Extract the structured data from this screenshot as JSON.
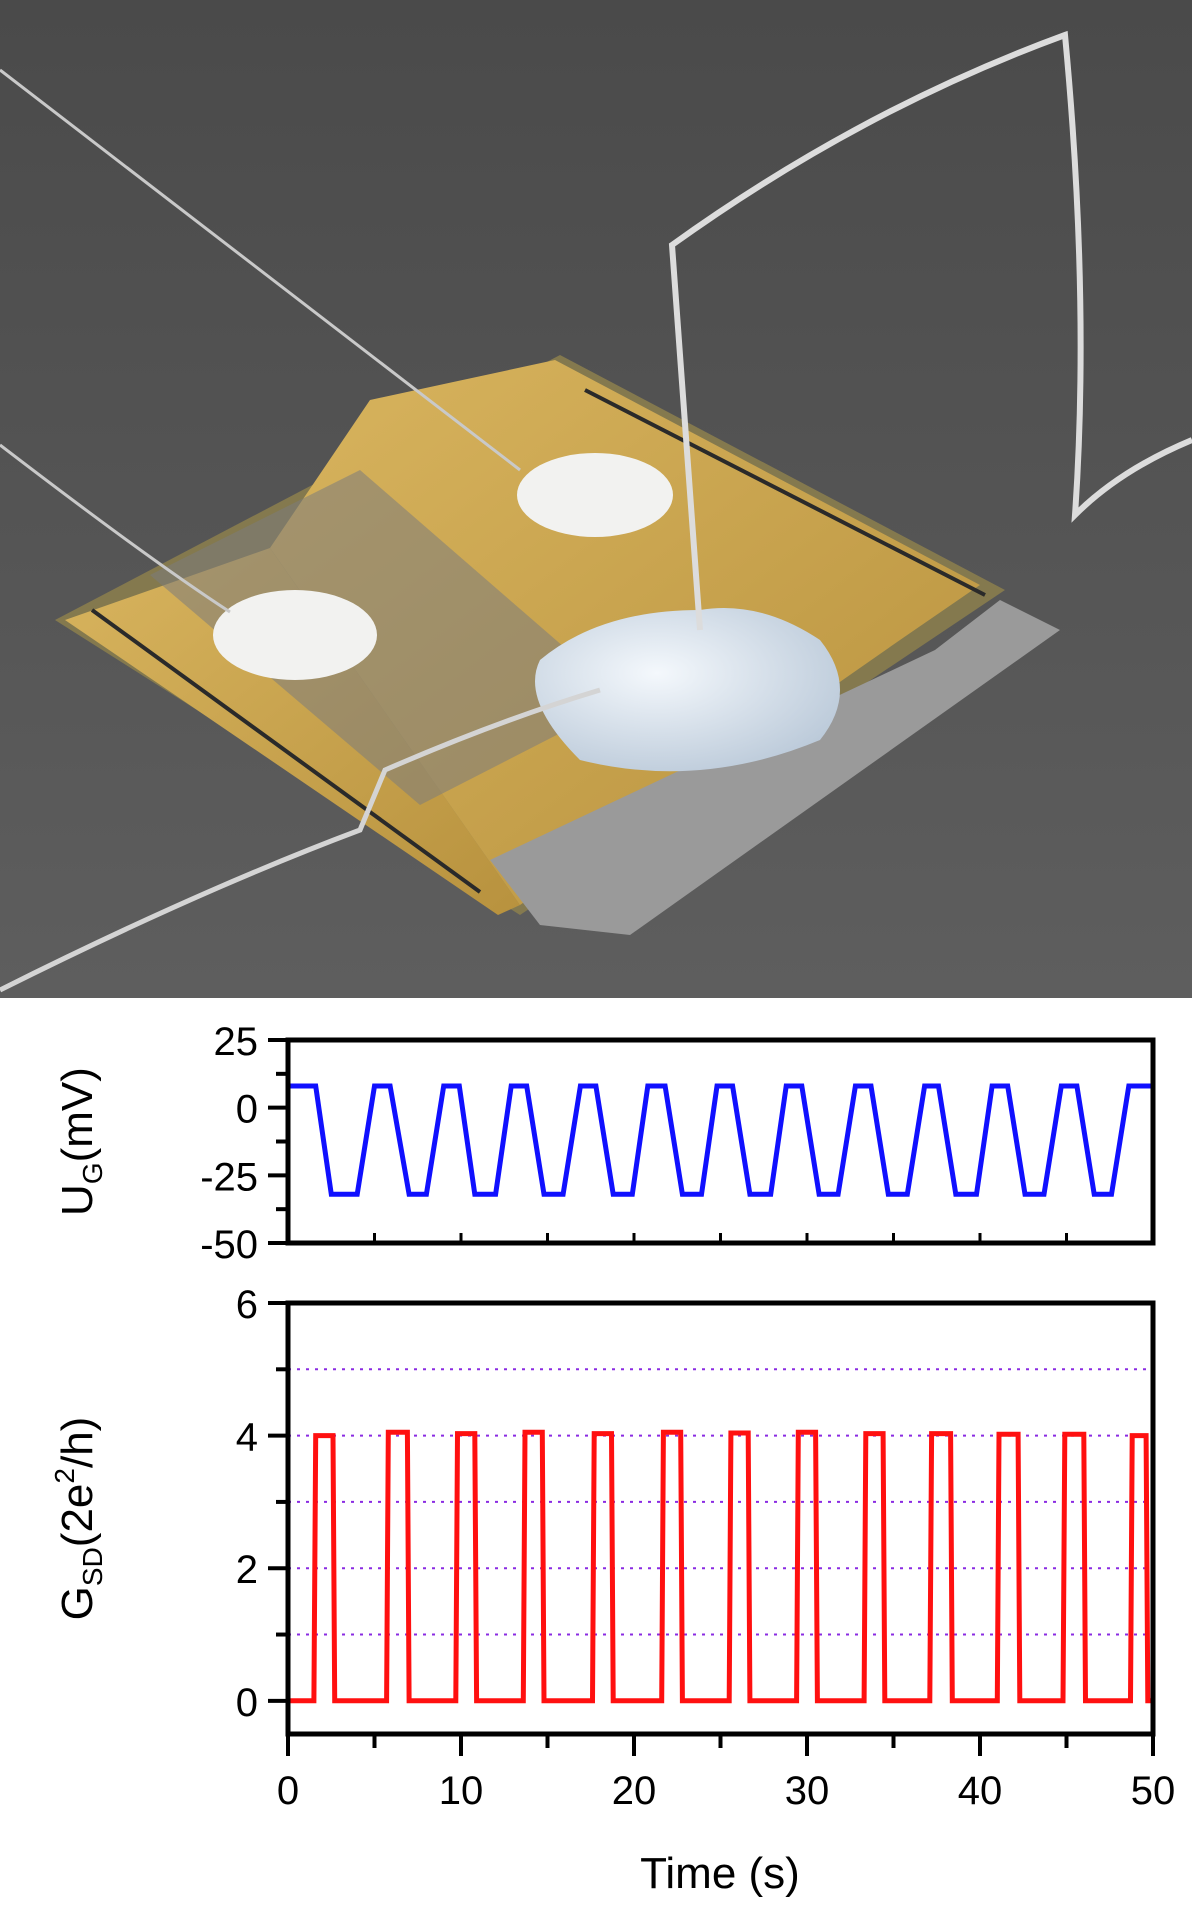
{
  "chart_data": [
    {
      "type": "line",
      "ylabel_main": "U",
      "ylabel_sub": "G",
      "ylabel_unit": "(mV)",
      "ylim": [
        -50,
        25
      ],
      "yticks": [
        25,
        0,
        -25,
        -50
      ],
      "xlim": [
        0,
        50
      ],
      "grid": false,
      "series": [
        {
          "color": "#1010ff",
          "x": [
            0,
            1.6,
            2.5,
            3.6,
            4.0,
            5.0,
            5.9,
            7.0,
            8.0,
            9.0,
            9.9,
            10.8,
            12.0,
            12.9,
            13.8,
            14.8,
            15.9,
            16.9,
            17.8,
            18.8,
            19.9,
            20.8,
            21.8,
            22.8,
            23.9,
            24.8,
            25.7,
            26.7,
            27.9,
            28.8,
            29.7,
            30.7,
            31.8,
            32.8,
            33.7,
            34.7,
            35.8,
            36.8,
            37.6,
            38.6,
            39.8,
            40.7,
            41.6,
            42.6,
            43.7,
            44.7,
            45.6,
            46.6,
            47.6,
            48.6,
            49.5,
            50
          ],
          "y": [
            8,
            8,
            -32,
            -32,
            -32,
            8,
            8,
            -32,
            -32,
            8,
            8,
            -32,
            -32,
            8,
            8,
            -32,
            -32,
            8,
            8,
            -32,
            -32,
            8,
            8,
            -32,
            -32,
            8,
            8,
            -32,
            -32,
            8,
            8,
            -32,
            -32,
            8,
            8,
            -32,
            -32,
            8,
            8,
            -32,
            -32,
            8,
            8,
            -32,
            -32,
            8,
            8,
            -32,
            -32,
            8,
            8,
            8
          ]
        }
      ]
    },
    {
      "type": "line",
      "ylabel_main": "G",
      "ylabel_sub": "SD",
      "ylabel_unit_pre": "(2e",
      "ylabel_sup": "2",
      "ylabel_unit_post": "/h)",
      "ylim": [
        -0.5,
        6
      ],
      "yticks": [
        6,
        4,
        2,
        0
      ],
      "xlim": [
        0,
        50
      ],
      "xticks": [
        0,
        10,
        20,
        30,
        40,
        50
      ],
      "xlabel": "Time (s)",
      "grid_levels": [
        1,
        2,
        3,
        4,
        5
      ],
      "grid_color": "#8a2be2",
      "series": [
        {
          "color": "#ff1010",
          "x": [
            0,
            1.5,
            1.6,
            2.6,
            2.7,
            5.7,
            5.8,
            6.9,
            7.0,
            9.7,
            9.8,
            10.8,
            10.9,
            13.6,
            13.7,
            14.7,
            14.8,
            17.6,
            17.7,
            18.7,
            18.8,
            21.6,
            21.7,
            22.7,
            22.8,
            25.5,
            25.6,
            26.6,
            26.7,
            29.4,
            29.5,
            30.5,
            30.6,
            33.3,
            33.4,
            34.4,
            34.5,
            37.1,
            37.2,
            38.3,
            38.4,
            41.0,
            41.1,
            42.2,
            42.3,
            44.8,
            44.9,
            46.0,
            46.1,
            48.7,
            48.8,
            49.6,
            49.7,
            50
          ],
          "y": [
            0,
            0,
            4.0,
            4.0,
            0,
            0,
            4.05,
            4.05,
            0,
            0,
            4.03,
            4.03,
            0,
            0,
            4.05,
            4.05,
            0,
            0,
            4.03,
            4.03,
            0,
            0,
            4.05,
            4.05,
            0,
            0,
            4.04,
            4.04,
            0,
            0,
            4.05,
            4.05,
            0,
            0,
            4.03,
            4.03,
            0,
            0,
            4.03,
            4.03,
            0,
            0,
            4.02,
            4.02,
            0,
            0,
            4.02,
            4.02,
            0,
            0,
            4.0,
            4.0,
            0,
            0
          ]
        }
      ]
    }
  ],
  "photo": {
    "background": "#565656",
    "substrate": "#8b7a3a",
    "electrode": "#c8a24e",
    "glass": "#a9a9a9",
    "droplet": "#e6eef5",
    "wire": "#d4d4d4",
    "contact": "#f2f2f0"
  }
}
